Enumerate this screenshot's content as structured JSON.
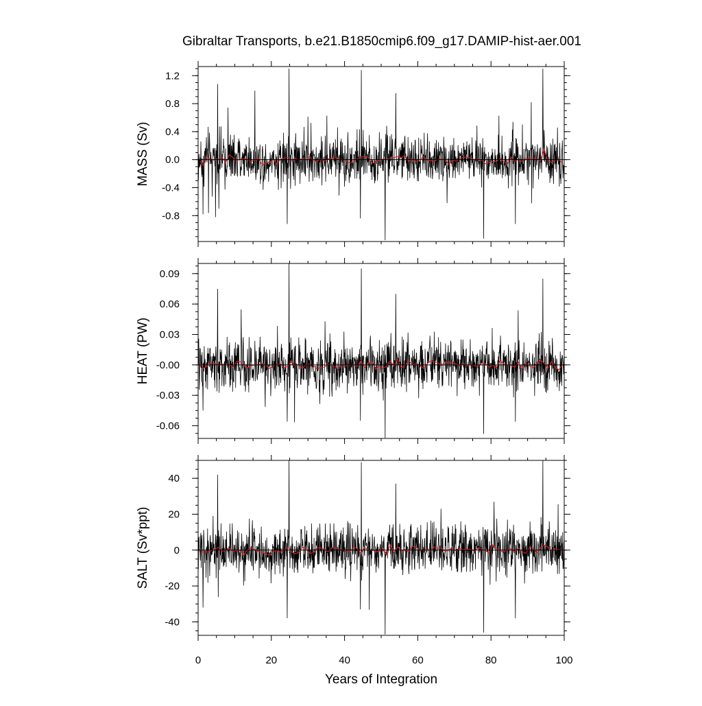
{
  "title": "Gibraltar Transports, b.e21.B1850cmip6.f09_g17.DAMIP-hist-aer.001",
  "xlabel": "Years of Integration",
  "colors": {
    "raw_series": "#000000",
    "smooth_series": "#e0191f",
    "axes": "#000000"
  },
  "chart_data": [
    {
      "type": "line",
      "ylabel": "MASS (Sv)",
      "xlim": [
        0,
        100
      ],
      "ylim": [
        -1.17,
        1.33
      ],
      "x_ticks": [
        0,
        20,
        40,
        60,
        80,
        100
      ],
      "y_ticks": [
        -0.8,
        -0.4,
        0.0,
        0.4,
        0.8,
        1.2
      ],
      "y_tick_labels": [
        "-0.8",
        "-0.4",
        "0.0",
        "0.4",
        "0.8",
        "1.2"
      ],
      "series": [
        {
          "kind": "monthly",
          "amplitude": 0.17,
          "start": 0,
          "end": 100,
          "points_per_year": 12
        },
        {
          "kind": "annual-mean",
          "start": 0,
          "end": 100
        }
      ],
      "spikes": [
        [
          5.3,
          1.08
        ],
        [
          24.8,
          1.3
        ],
        [
          44.6,
          1.28
        ],
        [
          54,
          0.95
        ],
        [
          94.2,
          1.3
        ],
        [
          91,
          0.82
        ],
        [
          24.3,
          -0.92
        ],
        [
          44.3,
          -0.84
        ],
        [
          51.1,
          -1.15
        ],
        [
          78,
          -1.13
        ],
        [
          86.7,
          -0.92
        ],
        [
          1.3,
          -0.78
        ],
        [
          5.7,
          -0.7
        ]
      ]
    },
    {
      "type": "line",
      "ylabel": "HEAT (PW)",
      "xlim": [
        0,
        100
      ],
      "ylim": [
        -0.0725,
        0.1
      ],
      "x_ticks": [
        0,
        20,
        40,
        60,
        80,
        100
      ],
      "y_ticks": [
        -0.06,
        -0.03,
        0.0,
        0.03,
        0.06,
        0.09
      ],
      "y_tick_labels": [
        "-0.06",
        "-0.03",
        "-0.00",
        "0.03",
        "0.06",
        "0.09"
      ],
      "series": [
        {
          "kind": "monthly",
          "amplitude": 0.012,
          "start": 0,
          "end": 100,
          "points_per_year": 12
        },
        {
          "kind": "annual-mean",
          "start": 0,
          "end": 100
        }
      ],
      "spikes": [
        [
          5.3,
          0.075
        ],
        [
          24.8,
          0.1
        ],
        [
          44.6,
          0.095
        ],
        [
          54,
          0.07
        ],
        [
          94.2,
          0.085
        ],
        [
          24.3,
          -0.056
        ],
        [
          44.3,
          -0.055
        ],
        [
          51.1,
          -0.072
        ],
        [
          78,
          -0.068
        ],
        [
          86.7,
          -0.056
        ],
        [
          1.3,
          -0.045
        ]
      ]
    },
    {
      "type": "line",
      "ylabel": "SALT (Sv*ppt)",
      "xlim": [
        0,
        100
      ],
      "ylim": [
        -47.5,
        50
      ],
      "x_ticks": [
        0,
        20,
        40,
        60,
        80,
        100
      ],
      "x_tick_labels": [
        "0",
        "20",
        "40",
        "60",
        "80",
        "100"
      ],
      "y_ticks": [
        -40,
        -20,
        0,
        20,
        40
      ],
      "y_tick_labels": [
        "-40",
        "-20",
        "0",
        "20",
        "40"
      ],
      "series": [
        {
          "kind": "monthly",
          "amplitude": 6.5,
          "start": 0,
          "end": 100,
          "points_per_year": 12
        },
        {
          "kind": "annual-mean",
          "start": 0,
          "end": 100
        }
      ],
      "spikes": [
        [
          5.3,
          42
        ],
        [
          24.8,
          50
        ],
        [
          44.6,
          49
        ],
        [
          54,
          37
        ],
        [
          94.2,
          50
        ],
        [
          24.3,
          -38
        ],
        [
          44.3,
          -33
        ],
        [
          51.1,
          -47
        ],
        [
          78,
          -46
        ],
        [
          86.7,
          -38
        ],
        [
          1.3,
          -32
        ]
      ]
    }
  ]
}
